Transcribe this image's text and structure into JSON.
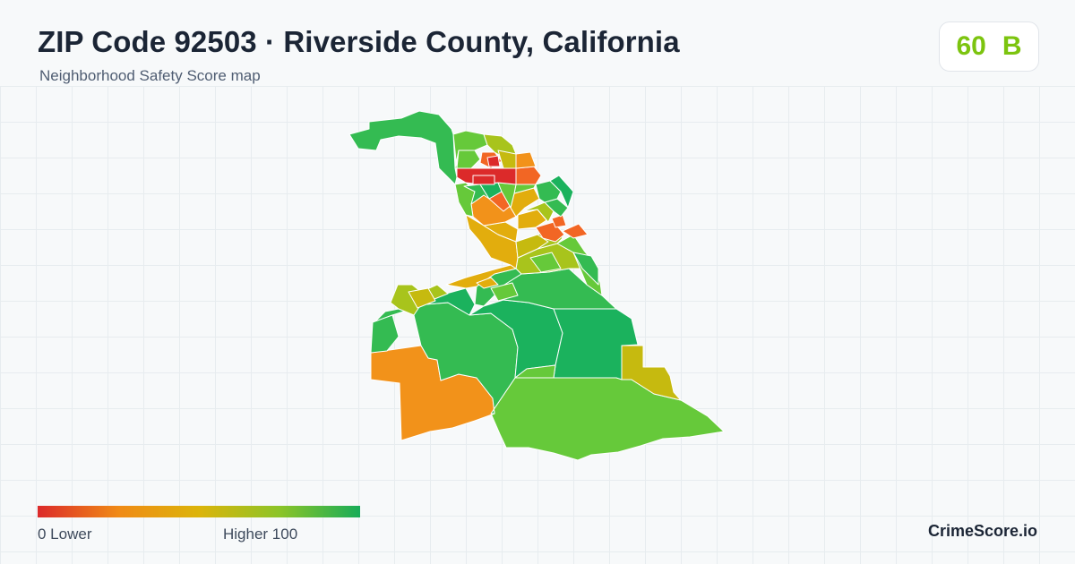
{
  "header": {
    "title": "ZIP Code 92503 · Riverside County, California",
    "subtitle": "Neighborhood Safety Score map"
  },
  "score": {
    "value": "60",
    "grade": "B",
    "color": "#7cc40f"
  },
  "legend": {
    "low_label": "0  Lower",
    "high_label": "Higher  100",
    "min": 0,
    "max": 100,
    "gradient_colors": [
      "#dc2a2a",
      "#f08a16",
      "#dcb40a",
      "#8cc428",
      "#18ac58"
    ]
  },
  "brand": "CrimeScore.io",
  "map": {
    "region_colors": {
      "red": "#dc2a2a",
      "red_orange": "#f26624",
      "orange": "#f2921a",
      "amber": "#e2ad0d",
      "olive": "#c6ba0f",
      "yellow_green": "#a8c41c",
      "light_green": "#66c93a",
      "green": "#34bb52",
      "dark_green": "#1bb25d"
    }
  }
}
